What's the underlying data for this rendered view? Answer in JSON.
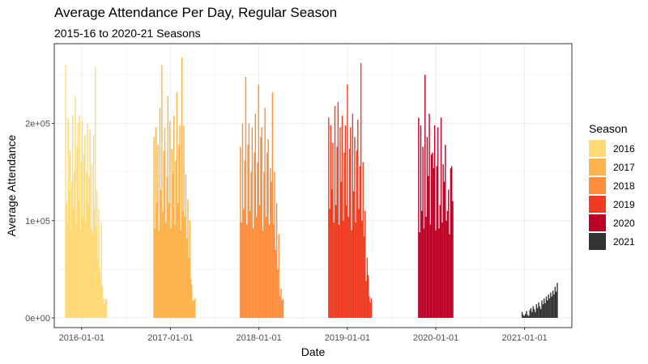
{
  "chart_data": {
    "type": "bar",
    "title": "Average Attendance Per Day, Regular Season",
    "subtitle": "2015-16 to 2020-21 Seasons",
    "xlabel": "Date",
    "ylabel": "Average Attendance",
    "x_ticks": [
      "2016-01-01",
      "2017-01-01",
      "2018-01-01",
      "2019-01-01",
      "2020-01-01",
      "2021-01-01"
    ],
    "y_ticks": [
      {
        "value": 0,
        "label": "0e+00"
      },
      {
        "value": 100000,
        "label": "1e+05"
      },
      {
        "value": 200000,
        "label": "2e+05"
      }
    ],
    "ylim": [
      -10000,
      282000
    ],
    "xlim": [
      "2015-09-10",
      "2021-07-15"
    ],
    "grid": true,
    "legend": {
      "title": "Season",
      "position": "right"
    },
    "series": [
      {
        "name": "2016",
        "color": "#FED976",
        "start": "2015-10-27",
        "end": "2016-04-13",
        "values": [
          260000,
          118000,
          98000,
          205000,
          132000,
          172000,
          90000,
          140000,
          208000,
          112000,
          150000,
          228000,
          96000,
          176000,
          200000,
          120000,
          208000,
          90000,
          160000,
          202000,
          104000,
          168000,
          188000,
          98000,
          150000,
          200000,
          116000,
          145000,
          194000,
          92000,
          158000,
          86000,
          188000,
          112000,
          258000,
          94000,
          132000,
          62000,
          112000,
          52000,
          40000,
          98000,
          32000,
          20000,
          14000,
          20000,
          18000,
          20000
        ]
      },
      {
        "name": "2017",
        "color": "#FEB24C",
        "start": "2016-10-25",
        "end": "2017-04-12",
        "values": [
          186000,
          92000,
          196000,
          118000,
          178000,
          90000,
          216000,
          132000,
          260000,
          110000,
          172000,
          196000,
          98000,
          145000,
          228000,
          118000,
          202000,
          92000,
          174000,
          148000,
          208000,
          96000,
          162000,
          232000,
          118000,
          178000,
          198000,
          90000,
          268000,
          110000,
          198000,
          104000,
          148000,
          82000,
          122000,
          62000,
          100000,
          40000,
          34000,
          18000,
          18000,
          20000
        ]
      },
      {
        "name": "2018",
        "color": "#FD8D3C",
        "start": "2017-10-17",
        "end": "2018-04-11",
        "values": [
          176000,
          98000,
          200000,
          112000,
          162000,
          248000,
          96000,
          178000,
          200000,
          110000,
          150000,
          196000,
          92000,
          170000,
          210000,
          104000,
          160000,
          240000,
          116000,
          186000,
          196000,
          90000,
          150000,
          216000,
          104000,
          170000,
          184000,
          96000,
          154000,
          140000,
          232000,
          96000,
          150000,
          70000,
          118000,
          50000,
          86000,
          22000,
          30000,
          18000,
          20000
        ]
      },
      {
        "name": "2019",
        "color": "#F03B20",
        "start": "2018-10-16",
        "end": "2019-04-10",
        "values": [
          206000,
          112000,
          198000,
          132000,
          180000,
          98000,
          218000,
          116000,
          176000,
          222000,
          96000,
          196000,
          140000,
          208000,
          100000,
          170000,
          198000,
          116000,
          240000,
          104000,
          174000,
          196000,
          90000,
          210000,
          130000,
          186000,
          98000,
          172000,
          204000,
          112000,
          156000,
          262000,
          100000,
          160000,
          84000,
          110000,
          38000,
          62000,
          44000,
          22000,
          16000,
          20000
        ]
      },
      {
        "name": "2020",
        "color": "#BD0026",
        "start": "2019-10-22",
        "end": "2020-03-11",
        "values": [
          206000,
          88000,
          198000,
          110000,
          176000,
          92000,
          250000,
          104000,
          186000,
          146000,
          210000,
          96000,
          168000,
          170000,
          154000,
          198000,
          90000,
          156000,
          196000,
          92000,
          116000,
          206000,
          98000,
          158000,
          140000,
          178000,
          100000,
          110000,
          132000,
          86000,
          154000,
          156000,
          120000
        ]
      },
      {
        "name": "2021",
        "color": "#333333",
        "start": "2020-12-22",
        "end": "2021-05-16",
        "values": [
          6000,
          3000,
          2000,
          4000,
          7000,
          3000,
          2000,
          8000,
          10000,
          6000,
          12000,
          9000,
          6000,
          14000,
          10000,
          16000,
          12000,
          9000,
          18000,
          14000,
          20000,
          15000,
          22000,
          18000,
          24000,
          20000,
          26000,
          22000,
          28000,
          24000,
          32000,
          27000,
          36000
        ]
      }
    ]
  }
}
